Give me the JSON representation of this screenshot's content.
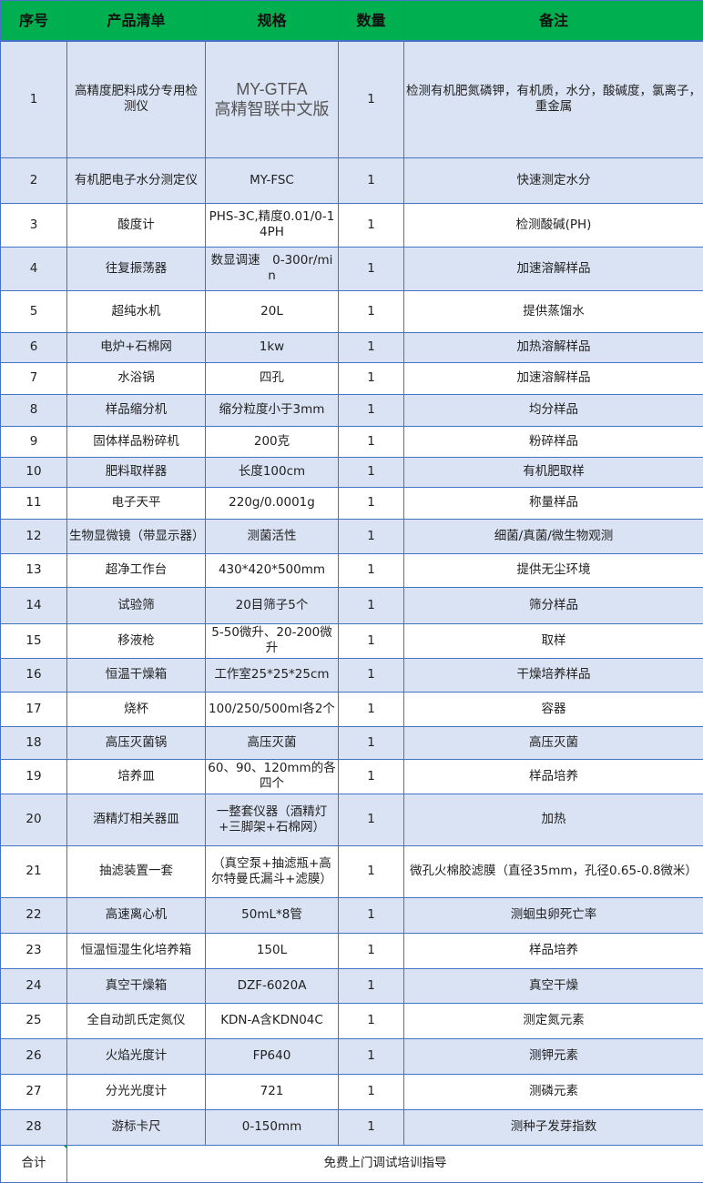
{
  "headers": [
    "序号",
    "产品清单",
    "规格",
    "数量",
    "备注"
  ],
  "rows": [
    {
      "no": "1",
      "name": "高精度肥料成分专用检测仪",
      "spec": "MY-GTFA\n高精智联中文版",
      "qty": "1",
      "note": "检测有机肥氮磷钾，有机质，水分，酸碱度，氯离子，重金属"
    },
    {
      "no": "2",
      "name": "有机肥电子水分测定仪",
      "spec": "MY-FSC",
      "qty": "1",
      "note": "快速测定水分"
    },
    {
      "no": "3",
      "name": "酸度计",
      "spec": "PHS-3C,精度0.01/0-14PH",
      "qty": "1",
      "note": "检测酸碱(PH)"
    },
    {
      "no": "4",
      "name": "往复振荡器",
      "spec": "数显调速　0-300r/min",
      "qty": "1",
      "note": "加速溶解样品"
    },
    {
      "no": "5",
      "name": "超纯水机",
      "spec": "20L",
      "qty": "1",
      "note": "提供蒸馏水"
    },
    {
      "no": "6",
      "name": "电炉+石棉网",
      "spec": "1kw",
      "qty": "1",
      "note": "加热溶解样品"
    },
    {
      "no": "7",
      "name": "水浴锅",
      "spec": "四孔",
      "qty": "1",
      "note": "加速溶解样品"
    },
    {
      "no": "8",
      "name": "样品缩分机",
      "spec": "缩分粒度小于3mm",
      "qty": "1",
      "note": "均分样品"
    },
    {
      "no": "9",
      "name": "固体样品粉碎机",
      "spec": "200克",
      "qty": "1",
      "note": "粉碎样品"
    },
    {
      "no": "10",
      "name": "肥料取样器",
      "spec": "长度100cm",
      "qty": "1",
      "note": "有机肥取样"
    },
    {
      "no": "11",
      "name": "电子天平",
      "spec": "220g/0.0001g",
      "qty": "1",
      "note": "称量样品"
    },
    {
      "no": "12",
      "name": "生物显微镜（带显示器）",
      "spec": "测菌活性",
      "qty": "1",
      "note": "细菌/真菌/微生物观测"
    },
    {
      "no": "13",
      "name": "超净工作台",
      "spec": "430*420*500mm",
      "qty": "1",
      "note": "提供无尘环境"
    },
    {
      "no": "14",
      "name": "试验筛",
      "spec": "20目筛子5个",
      "qty": "1",
      "note": "筛分样品"
    },
    {
      "no": "15",
      "name": "移液枪",
      "spec": "5-50微升、20-200微升",
      "qty": "1",
      "note": "取样"
    },
    {
      "no": "16",
      "name": "恒温干燥箱",
      "spec": "工作室25*25*25cm",
      "qty": "1",
      "note": "干燥培养样品"
    },
    {
      "no": "17",
      "name": "烧杯",
      "spec": "100/250/500ml各2个",
      "qty": "1",
      "note": "容器"
    },
    {
      "no": "18",
      "name": "高压灭菌锅",
      "spec": "高压灭菌",
      "qty": "1",
      "note": "高压灭菌"
    },
    {
      "no": "19",
      "name": "培养皿",
      "spec": "60、90、120mm的各四个",
      "qty": "1",
      "note": "样品培养"
    },
    {
      "no": "20",
      "name": "酒精灯相关器皿",
      "spec": "一整套仪器（酒精灯+三脚架+石棉网）",
      "qty": "1",
      "note": "加热"
    },
    {
      "no": "21",
      "name": "抽滤装置一套",
      "spec": "（真空泵+抽滤瓶+高尔特曼氏漏斗+滤膜）",
      "qty": "1",
      "note": "微孔火棉胶滤膜（直径35mm，孔径0.65-0.8微米）"
    },
    {
      "no": "22",
      "name": "高速离心机",
      "spec": "50mL*8管",
      "qty": "1",
      "note": "测蛔虫卵死亡率"
    },
    {
      "no": "23",
      "name": "恒温恒湿生化培养箱",
      "spec": "150L",
      "qty": "1",
      "note": "样品培养"
    },
    {
      "no": "24",
      "name": "真空干燥箱",
      "spec": "DZF-6020A",
      "qty": "1",
      "note": "真空干燥"
    },
    {
      "no": "25",
      "name": "全自动凯氏定氮仪",
      "spec": "KDN-A含KDN04C",
      "qty": "1",
      "note": "测定氮元素"
    },
    {
      "no": "26",
      "name": "火焰光度计",
      "spec": "FP640",
      "qty": "1",
      "note": "测钾元素"
    },
    {
      "no": "27",
      "name": "分光光度计",
      "spec": "721",
      "qty": "1",
      "note": "测磷元素"
    },
    {
      "no": "28",
      "name": "游标卡尺",
      "spec": "0-150mm",
      "qty": "1",
      "note": "测种子发芽指数"
    }
  ],
  "total": {
    "label": "合计",
    "text": "免费上门调试培训指导"
  },
  "colors": {
    "header_bg": "#00b050",
    "row_blue": "#dae3f3",
    "border": "#4472c4"
  }
}
